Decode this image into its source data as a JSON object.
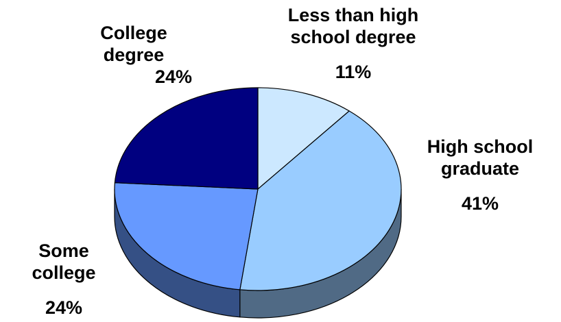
{
  "chart_data": {
    "type": "pie",
    "title": "",
    "style": "3d-exploded-none",
    "slices": [
      {
        "label": "Less than high\nschool degree",
        "value": 11,
        "display": "11%",
        "color": "#CCE8FF"
      },
      {
        "label": "High school\ngraduate",
        "value": 41,
        "display": "41%",
        "color": "#99CCFF"
      },
      {
        "label": "Some\ncollege",
        "value": 24,
        "display": "24%",
        "color": "#6699FF"
      },
      {
        "label": "College\ndegree",
        "value": 24,
        "display": "24%",
        "color": "#000080"
      }
    ],
    "edge_color": "#000000"
  }
}
